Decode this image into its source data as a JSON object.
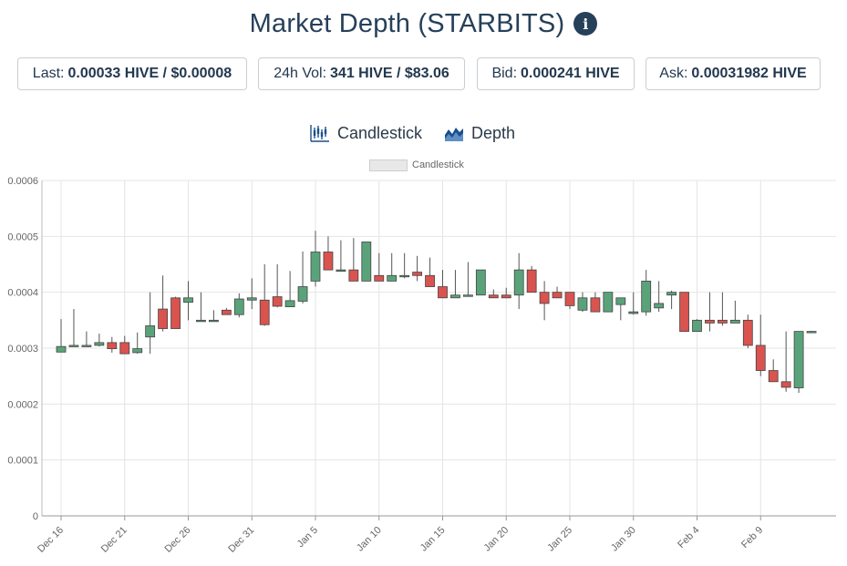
{
  "header": {
    "title": "Market Depth (STARBITS)",
    "info_icon": "info-icon"
  },
  "stats": {
    "last_label": "Last:",
    "last_value": "0.00033 HIVE / $0.00008",
    "vol_label": "24h Vol:",
    "vol_value": "341 HIVE / $83.06",
    "bid_label": "Bid:",
    "bid_value": "0.000241 HIVE",
    "ask_label": "Ask:",
    "ask_value": "0.00031982 HIVE"
  },
  "toggles": {
    "candlestick_label": "Candlestick",
    "depth_label": "Depth"
  },
  "colors": {
    "up": "#5aa37a",
    "down": "#d9534f",
    "icon": "#1a4f8a",
    "grid": "#e4e4e4"
  },
  "chart_data": {
    "type": "candlestick",
    "legend": "Candlestick",
    "ylim": [
      0,
      0.0006
    ],
    "y_ticks": [
      "0",
      "0.0001",
      "0.0002",
      "0.0003",
      "0.0004",
      "0.0005",
      "0.0006"
    ],
    "x_ticks": [
      "Dec 16",
      "Dec 21",
      "Dec 26",
      "Dec 31",
      "Jan 5",
      "Jan 10",
      "Jan 15",
      "Jan 20",
      "Jan 25",
      "Jan 30",
      "Feb 4",
      "Feb 9"
    ],
    "candles": [
      {
        "date": "Dec 16",
        "o": 0.000293,
        "h": 0.000352,
        "l": 0.000293,
        "c": 0.000303
      },
      {
        "date": "Dec 17",
        "o": 0.000303,
        "h": 0.00037,
        "l": 0.000303,
        "c": 0.000305
      },
      {
        "date": "Dec 18",
        "o": 0.000305,
        "h": 0.00033,
        "l": 0.000303,
        "c": 0.000305
      },
      {
        "date": "Dec 19",
        "o": 0.000305,
        "h": 0.000326,
        "l": 0.000303,
        "c": 0.00031
      },
      {
        "date": "Dec 20",
        "o": 0.00031,
        "h": 0.00032,
        "l": 0.000292,
        "c": 0.000299
      },
      {
        "date": "Dec 21",
        "o": 0.00031,
        "h": 0.000322,
        "l": 0.00029,
        "c": 0.00029
      },
      {
        "date": "Dec 22",
        "o": 0.000292,
        "h": 0.000328,
        "l": 0.00029,
        "c": 0.000299
      },
      {
        "date": "Dec 23",
        "o": 0.00032,
        "h": 0.0004,
        "l": 0.00029,
        "c": 0.00034
      },
      {
        "date": "Dec 24",
        "o": 0.00037,
        "h": 0.00043,
        "l": 0.00033,
        "c": 0.000335
      },
      {
        "date": "Dec 25",
        "o": 0.00039,
        "h": 0.000392,
        "l": 0.000335,
        "c": 0.000335
      },
      {
        "date": "Dec 26",
        "o": 0.000382,
        "h": 0.00042,
        "l": 0.00035,
        "c": 0.00039
      },
      {
        "date": "Dec 27",
        "o": 0.00035,
        "h": 0.0004,
        "l": 0.00035,
        "c": 0.00035
      },
      {
        "date": "Dec 28",
        "o": 0.00035,
        "h": 0.000368,
        "l": 0.00035,
        "c": 0.00035
      },
      {
        "date": "Dec 29",
        "o": 0.000368,
        "h": 0.000372,
        "l": 0.00036,
        "c": 0.00036
      },
      {
        "date": "Dec 30",
        "o": 0.00036,
        "h": 0.000398,
        "l": 0.000355,
        "c": 0.000388
      },
      {
        "date": "Dec 31",
        "o": 0.000386,
        "h": 0.000425,
        "l": 0.00037,
        "c": 0.00039
      },
      {
        "date": "Jan 1",
        "o": 0.000386,
        "h": 0.00045,
        "l": 0.00034,
        "c": 0.000342
      },
      {
        "date": "Jan 2",
        "o": 0.000392,
        "h": 0.00045,
        "l": 0.000373,
        "c": 0.000375
      },
      {
        "date": "Jan 3",
        "o": 0.000374,
        "h": 0.000438,
        "l": 0.000374,
        "c": 0.000385
      },
      {
        "date": "Jan 4",
        "o": 0.000384,
        "h": 0.000473,
        "l": 0.00038,
        "c": 0.00041
      },
      {
        "date": "Jan 5",
        "o": 0.00042,
        "h": 0.00051,
        "l": 0.00041,
        "c": 0.000472
      },
      {
        "date": "Jan 6",
        "o": 0.000472,
        "h": 0.0005,
        "l": 0.00044,
        "c": 0.00044
      },
      {
        "date": "Jan 7",
        "o": 0.00044,
        "h": 0.000493,
        "l": 0.00044,
        "c": 0.00044
      },
      {
        "date": "Jan 8",
        "o": 0.00044,
        "h": 0.000497,
        "l": 0.00042,
        "c": 0.00042
      },
      {
        "date": "Jan 9",
        "o": 0.00042,
        "h": 0.00049,
        "l": 0.00042,
        "c": 0.00049
      },
      {
        "date": "Jan 10",
        "o": 0.00043,
        "h": 0.00047,
        "l": 0.00042,
        "c": 0.00042
      },
      {
        "date": "Jan 11",
        "o": 0.00042,
        "h": 0.00047,
        "l": 0.00042,
        "c": 0.00043
      },
      {
        "date": "Jan 12",
        "o": 0.00043,
        "h": 0.00047,
        "l": 0.000425,
        "c": 0.00043
      },
      {
        "date": "Jan 13",
        "o": 0.000436,
        "h": 0.000465,
        "l": 0.00042,
        "c": 0.00043
      },
      {
        "date": "Jan 14",
        "o": 0.00043,
        "h": 0.000462,
        "l": 0.00041,
        "c": 0.00041
      },
      {
        "date": "Jan 15",
        "o": 0.00041,
        "h": 0.00044,
        "l": 0.00039,
        "c": 0.00039
      },
      {
        "date": "Jan 16",
        "o": 0.00039,
        "h": 0.00044,
        "l": 0.00039,
        "c": 0.000395
      },
      {
        "date": "Jan 17",
        "o": 0.000393,
        "h": 0.000454,
        "l": 0.000393,
        "c": 0.000395
      },
      {
        "date": "Jan 18",
        "o": 0.000395,
        "h": 0.00044,
        "l": 0.000395,
        "c": 0.00044
      },
      {
        "date": "Jan 19",
        "o": 0.000395,
        "h": 0.000405,
        "l": 0.00039,
        "c": 0.00039
      },
      {
        "date": "Jan 20",
        "o": 0.000395,
        "h": 0.000408,
        "l": 0.00039,
        "c": 0.00039
      },
      {
        "date": "Jan 21",
        "o": 0.000395,
        "h": 0.00047,
        "l": 0.00037,
        "c": 0.00044
      },
      {
        "date": "Jan 22",
        "o": 0.00044,
        "h": 0.000447,
        "l": 0.0004,
        "c": 0.0004
      },
      {
        "date": "Jan 23",
        "o": 0.0004,
        "h": 0.00042,
        "l": 0.00035,
        "c": 0.00038
      },
      {
        "date": "Jan 24",
        "o": 0.0004,
        "h": 0.00041,
        "l": 0.00039,
        "c": 0.00039
      },
      {
        "date": "Jan 25",
        "o": 0.0004,
        "h": 0.0004,
        "l": 0.00037,
        "c": 0.000376
      },
      {
        "date": "Jan 26",
        "o": 0.000368,
        "h": 0.0004,
        "l": 0.000365,
        "c": 0.00039
      },
      {
        "date": "Jan 27",
        "o": 0.00039,
        "h": 0.0004,
        "l": 0.000365,
        "c": 0.000365
      },
      {
        "date": "Jan 28",
        "o": 0.000365,
        "h": 0.0004,
        "l": 0.000365,
        "c": 0.0004
      },
      {
        "date": "Jan 29",
        "o": 0.000378,
        "h": 0.00039,
        "l": 0.00035,
        "c": 0.00039
      },
      {
        "date": "Jan 30",
        "o": 0.000362,
        "h": 0.0004,
        "l": 0.00036,
        "c": 0.000365
      },
      {
        "date": "Jan 31",
        "o": 0.000365,
        "h": 0.00044,
        "l": 0.000358,
        "c": 0.00042
      },
      {
        "date": "Feb 1",
        "o": 0.000372,
        "h": 0.00042,
        "l": 0.000365,
        "c": 0.00038
      },
      {
        "date": "Feb 2",
        "o": 0.000395,
        "h": 0.000403,
        "l": 0.00037,
        "c": 0.0004
      },
      {
        "date": "Feb 3",
        "o": 0.0004,
        "h": 0.0004,
        "l": 0.00033,
        "c": 0.00033
      },
      {
        "date": "Feb 4",
        "o": 0.00033,
        "h": 0.000352,
        "l": 0.00033,
        "c": 0.00035
      },
      {
        "date": "Feb 5",
        "o": 0.00035,
        "h": 0.0004,
        "l": 0.00033,
        "c": 0.000345
      },
      {
        "date": "Feb 6",
        "o": 0.00035,
        "h": 0.0004,
        "l": 0.00034,
        "c": 0.000345
      },
      {
        "date": "Feb 7",
        "o": 0.000345,
        "h": 0.000385,
        "l": 0.000345,
        "c": 0.00035
      },
      {
        "date": "Feb 8",
        "o": 0.00035,
        "h": 0.00036,
        "l": 0.0003,
        "c": 0.000305
      },
      {
        "date": "Feb 9",
        "o": 0.000305,
        "h": 0.00036,
        "l": 0.00025,
        "c": 0.00026
      },
      {
        "date": "Feb 10",
        "o": 0.00026,
        "h": 0.00028,
        "l": 0.00024,
        "c": 0.00024
      },
      {
        "date": "Feb 11",
        "o": 0.00024,
        "h": 0.00033,
        "l": 0.000222,
        "c": 0.00023
      },
      {
        "date": "Feb 12",
        "o": 0.000229,
        "h": 0.00033,
        "l": 0.00022,
        "c": 0.00033
      },
      {
        "date": "Feb 13",
        "o": 0.000329,
        "h": 0.000331,
        "l": 0.000327,
        "c": 0.00033
      }
    ]
  }
}
